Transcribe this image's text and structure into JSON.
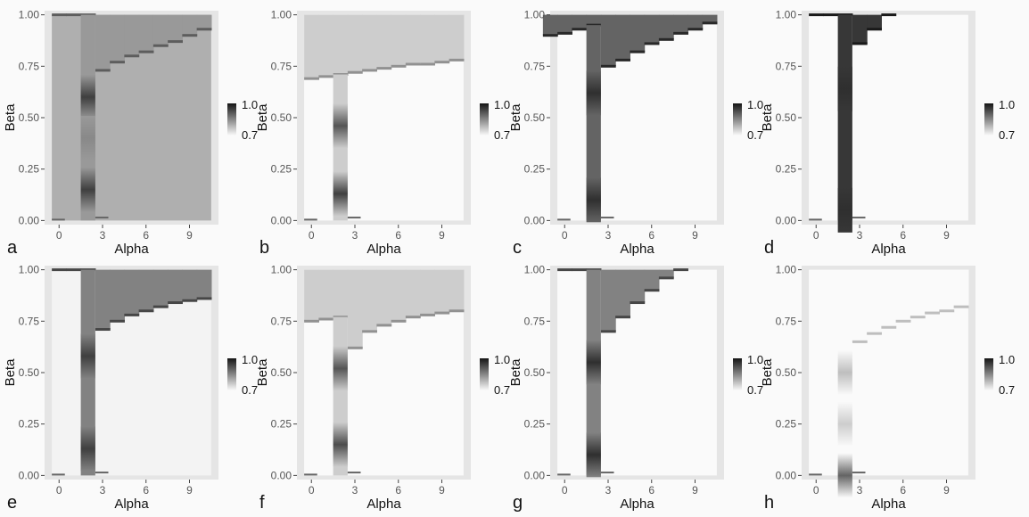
{
  "chart_data": [
    {
      "type": "heatmap",
      "panel": "a",
      "xlabel": "Alpha",
      "ylabel": "Beta",
      "xticks": [
        "0",
        "3",
        "6",
        "9"
      ],
      "yticks": [
        "0.00",
        "0.25",
        "0.50",
        "0.75",
        "1.00"
      ],
      "xlim": [
        -1,
        11
      ],
      "ylim": [
        -0.02,
        1.02
      ],
      "legend": {
        "position": "right",
        "labels": [
          "1.0",
          "0.7"
        ]
      },
      "outer_value": 0.8,
      "region_value": 0.83,
      "boundary": [
        [
          0.5,
          1.0
        ],
        [
          1.5,
          1.0
        ],
        [
          2.5,
          1.0
        ],
        [
          3.5,
          0.73
        ],
        [
          4.5,
          0.77
        ],
        [
          5.5,
          0.8
        ],
        [
          6.5,
          0.82
        ],
        [
          7.5,
          0.85
        ],
        [
          8.5,
          0.87
        ],
        [
          9.5,
          0.9
        ],
        [
          10.5,
          0.93
        ]
      ],
      "stripe": {
        "x": 2,
        "blobs": [
          [
            0.6,
            0.95
          ],
          [
            0.15,
            0.95
          ],
          [
            0.4,
            0.85
          ]
        ]
      }
    },
    {
      "type": "heatmap",
      "panel": "b",
      "xlabel": "Alpha",
      "ylabel": "Beta",
      "xticks": [
        "0",
        "3",
        "6",
        "9"
      ],
      "yticks": [
        "0.00",
        "0.25",
        "0.50",
        "0.75",
        "1.00"
      ],
      "xlim": [
        -1,
        11
      ],
      "ylim": [
        -0.02,
        1.02
      ],
      "legend": {
        "position": "right",
        "labels": [
          "1.0",
          "0.7"
        ]
      },
      "outer_value": 0.7,
      "region_value": 0.76,
      "boundary": [
        [
          0.5,
          0.69
        ],
        [
          1.5,
          0.7
        ],
        [
          2.5,
          0.71
        ],
        [
          3.5,
          0.72
        ],
        [
          4.5,
          0.73
        ],
        [
          5.5,
          0.74
        ],
        [
          6.5,
          0.75
        ],
        [
          7.5,
          0.76
        ],
        [
          8.5,
          0.76
        ],
        [
          9.5,
          0.77
        ],
        [
          10.5,
          0.78
        ]
      ],
      "stripe": {
        "x": 2,
        "blobs": [
          [
            0.46,
            0.92
          ],
          [
            0.13,
            0.95
          ]
        ]
      }
    },
    {
      "type": "heatmap",
      "panel": "c",
      "xlabel": "Alpha",
      "ylabel": "Beta",
      "xticks": [
        "0",
        "3",
        "6",
        "9"
      ],
      "yticks": [
        "0.00",
        "0.25",
        "0.50",
        "0.75",
        "1.00"
      ],
      "xlim": [
        -1,
        11
      ],
      "ylim": [
        -0.02,
        1.02
      ],
      "legend": {
        "position": "right",
        "labels": [
          "1.0",
          "0.7"
        ]
      },
      "outer_value": 0.7,
      "region_value": 0.9,
      "boundary": [
        [
          -0.5,
          0.9
        ],
        [
          0.5,
          0.91
        ],
        [
          1.5,
          0.93
        ],
        [
          2.5,
          0.95
        ],
        [
          3.5,
          0.75
        ],
        [
          4.5,
          0.78
        ],
        [
          5.5,
          0.82
        ],
        [
          6.5,
          0.86
        ],
        [
          7.5,
          0.88
        ],
        [
          8.5,
          0.91
        ],
        [
          9.5,
          0.93
        ],
        [
          10.5,
          0.96
        ]
      ],
      "stripe": {
        "x": 2,
        "blobs": [
          [
            0.62,
            0.97
          ],
          [
            0.1,
            0.97
          ]
        ]
      }
    },
    {
      "type": "heatmap",
      "panel": "d",
      "xlabel": "Alpha",
      "ylabel": "Beta",
      "xticks": [
        "0",
        "3",
        "6",
        "9"
      ],
      "yticks": [
        "0.00",
        "0.25",
        "0.50",
        "0.75",
        "1.00"
      ],
      "xlim": [
        -1,
        11
      ],
      "ylim": [
        -0.02,
        1.02
      ],
      "legend": {
        "position": "right",
        "labels": [
          "1.0",
          "0.7"
        ]
      },
      "outer_value": 0.7,
      "region_value": 0.96,
      "boundary": [
        [
          0.5,
          1.0
        ],
        [
          1.5,
          1.0
        ],
        [
          2.5,
          1.0
        ],
        [
          3.5,
          0.86
        ],
        [
          4.5,
          0.93
        ],
        [
          5.5,
          1.0
        ]
      ],
      "stripe": {
        "x": 2,
        "blobs": [
          [
            0.64,
            0.97
          ],
          [
            0.05,
            0.97
          ]
        ]
      }
    },
    {
      "type": "heatmap",
      "panel": "e",
      "xlabel": "Alpha",
      "ylabel": "Beta",
      "xticks": [
        "0",
        "3",
        "6",
        "9"
      ],
      "yticks": [
        "0.00",
        "0.25",
        "0.50",
        "0.75",
        "1.00"
      ],
      "xlim": [
        -1,
        11
      ],
      "ylim": [
        -0.02,
        1.02
      ],
      "legend": {
        "position": "right",
        "labels": [
          "1.0",
          "0.7"
        ]
      },
      "outer_value": 0.71,
      "region_value": 0.86,
      "boundary": [
        [
          0.5,
          1.0
        ],
        [
          1.5,
          1.0
        ],
        [
          2.5,
          1.0
        ],
        [
          3.5,
          0.71
        ],
        [
          4.5,
          0.75
        ],
        [
          5.5,
          0.78
        ],
        [
          6.5,
          0.8
        ],
        [
          7.5,
          0.82
        ],
        [
          8.5,
          0.84
        ],
        [
          9.5,
          0.85
        ],
        [
          10.5,
          0.86
        ]
      ],
      "stripe": {
        "x": 2,
        "blobs": [
          [
            0.58,
            0.95
          ],
          [
            0.13,
            0.95
          ]
        ]
      }
    },
    {
      "type": "heatmap",
      "panel": "f",
      "xlabel": "Alpha",
      "ylabel": "Beta",
      "xticks": [
        "0",
        "3",
        "6",
        "9"
      ],
      "yticks": [
        "0.00",
        "0.25",
        "0.50",
        "0.75",
        "1.00"
      ],
      "xlim": [
        -1,
        11
      ],
      "ylim": [
        -0.02,
        1.02
      ],
      "legend": {
        "position": "right",
        "labels": [
          "1.0",
          "0.7"
        ]
      },
      "outer_value": 0.7,
      "region_value": 0.76,
      "boundary": [
        [
          0.5,
          0.75
        ],
        [
          1.5,
          0.76
        ],
        [
          2.5,
          0.77
        ],
        [
          3.5,
          0.62
        ],
        [
          4.5,
          0.7
        ],
        [
          5.5,
          0.73
        ],
        [
          6.5,
          0.75
        ],
        [
          7.5,
          0.77
        ],
        [
          8.5,
          0.78
        ],
        [
          9.5,
          0.79
        ],
        [
          10.5,
          0.8
        ]
      ],
      "stripe": {
        "x": 2,
        "blobs": [
          [
            0.52,
            0.92
          ],
          [
            0.15,
            0.93
          ]
        ]
      }
    },
    {
      "type": "heatmap",
      "panel": "g",
      "xlabel": "Alpha",
      "ylabel": "Beta",
      "xticks": [
        "0",
        "3",
        "6",
        "9"
      ],
      "yticks": [
        "0.00",
        "0.25",
        "0.50",
        "0.75",
        "1.00"
      ],
      "xlim": [
        -1,
        11
      ],
      "ylim": [
        -0.02,
        1.02
      ],
      "legend": {
        "position": "right",
        "labels": [
          "1.0",
          "0.7"
        ]
      },
      "outer_value": 0.7,
      "region_value": 0.86,
      "boundary": [
        [
          0.5,
          1.0
        ],
        [
          1.5,
          1.0
        ],
        [
          2.5,
          1.0
        ],
        [
          3.5,
          0.7
        ],
        [
          4.5,
          0.77
        ],
        [
          5.5,
          0.84
        ],
        [
          6.5,
          0.9
        ],
        [
          7.5,
          0.96
        ],
        [
          8.5,
          1.0
        ]
      ],
      "stripe": {
        "x": 2,
        "blobs": [
          [
            0.55,
            0.97
          ],
          [
            0.1,
            0.97
          ]
        ]
      }
    },
    {
      "type": "heatmap",
      "panel": "h",
      "xlabel": "Alpha",
      "ylabel": "Beta",
      "xticks": [
        "0",
        "3",
        "6",
        "9"
      ],
      "yticks": [
        "0.00",
        "0.25",
        "0.50",
        "0.75",
        "1.00"
      ],
      "xlim": [
        -1,
        11
      ],
      "ylim": [
        -0.02,
        1.02
      ],
      "legend": {
        "position": "right",
        "labels": [
          "1.0",
          "0.7"
        ]
      },
      "outer_value": 0.7,
      "region_value": 0.7,
      "boundary": [
        [
          3.5,
          0.65
        ],
        [
          4.5,
          0.69
        ],
        [
          5.5,
          0.72
        ],
        [
          6.5,
          0.75
        ],
        [
          7.5,
          0.77
        ],
        [
          8.5,
          0.79
        ],
        [
          9.5,
          0.8
        ],
        [
          10.5,
          0.82
        ]
      ],
      "stripe": {
        "x": 2,
        "blobs": [
          [
            0.5,
            0.78
          ],
          [
            0.25,
            0.76
          ],
          [
            0.0,
            0.9
          ]
        ]
      }
    }
  ]
}
